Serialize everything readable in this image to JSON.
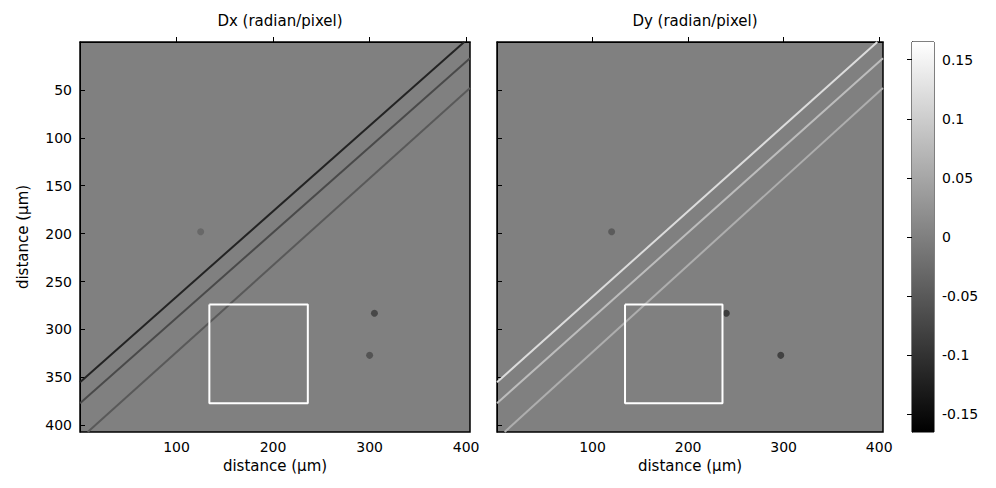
{
  "chart_data": [
    {
      "type": "image",
      "title": "Dx (radian/pixel)",
      "xlabel": "distance (µm)",
      "ylabel": "distance (µm)",
      "xlim": [
        0,
        404
      ],
      "ylim": [
        0,
        407
      ],
      "xticks": [
        100,
        200,
        300,
        400
      ],
      "yticks": [
        50,
        100,
        150,
        200,
        250,
        300,
        350,
        400
      ],
      "tick_labels": true,
      "background": 0,
      "lines": [
        {
          "x": [
            0,
            398
          ],
          "y": [
            355,
            0
          ],
          "value": -0.12
        },
        {
          "x": [
            0,
            404
          ],
          "y": [
            377,
            17
          ],
          "value": -0.07
        },
        {
          "x": [
            8,
            404
          ],
          "y": [
            407,
            48
          ],
          "value": -0.05
        }
      ],
      "spots": [
        {
          "x": 125,
          "y": 198,
          "value": -0.04
        },
        {
          "x": 305,
          "y": 283,
          "value": -0.09
        },
        {
          "x": 300,
          "y": 327,
          "value": -0.07
        }
      ],
      "box": {
        "x": [
          134,
          236
        ],
        "y": [
          274,
          377
        ]
      }
    },
    {
      "type": "image",
      "title": "Dy (radian/pixel)",
      "xlabel": "distance (µm)",
      "xlim": [
        0,
        404
      ],
      "ylim": [
        0,
        407
      ],
      "xticks": [
        100,
        200,
        300,
        400
      ],
      "yticks": [
        50,
        100,
        150,
        200,
        250,
        300,
        350,
        400
      ],
      "tick_labels": "x",
      "background": 0,
      "lines": [
        {
          "x": [
            0,
            398
          ],
          "y": [
            355,
            0
          ],
          "value": 0.12
        },
        {
          "x": [
            0,
            404
          ],
          "y": [
            377,
            17
          ],
          "value": 0.08
        },
        {
          "x": [
            8,
            404
          ],
          "y": [
            407,
            48
          ],
          "value": 0.06
        }
      ],
      "spots": [
        {
          "x": 120,
          "y": 198,
          "value": -0.06
        },
        {
          "x": 240,
          "y": 283,
          "value": -0.11
        },
        {
          "x": 297,
          "y": 327,
          "value": -0.1
        }
      ],
      "box": {
        "x": [
          134,
          236
        ],
        "y": [
          274,
          377
        ]
      }
    }
  ],
  "colorbar": {
    "range": [
      -0.165,
      0.165
    ],
    "ticks": [
      -0.15,
      -0.1,
      -0.05,
      0,
      0.05,
      0.1,
      0.15
    ]
  }
}
